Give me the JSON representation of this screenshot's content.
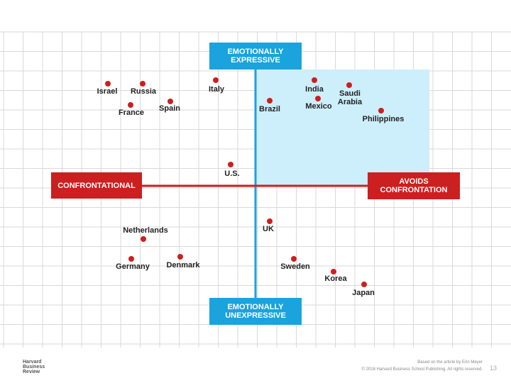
{
  "axes": {
    "top": "EMOTIONALLY EXPRESSIVE",
    "bottom": "EMOTIONALLY UNEXPRESSIVE",
    "left": "CONFRONTATIONAL",
    "right": "AVOIDS CONFRONTATION"
  },
  "countries": [
    "Israel",
    "Russia",
    "France",
    "Spain",
    "Italy",
    "Brazil",
    "India",
    "Mexico",
    "Saudi Arabia",
    "Philippines",
    "U.S.",
    "Netherlands",
    "UK",
    "Germany",
    "Denmark",
    "Sweden",
    "Korea",
    "Japan"
  ],
  "footer": {
    "logo": "Harvard Business Review",
    "credit": "Based on the article by Erin Meyer",
    "copyright": "© 2016 Harvard Business School Publishing. All rights reserved.",
    "page": "13"
  }
}
